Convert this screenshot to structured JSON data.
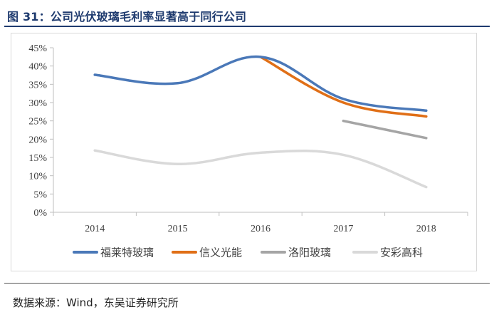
{
  "figure": {
    "title": "图 31：公司光伏玻璃毛利率显著高于同行公司",
    "source": "数据来源：Wind，东吴证券研究所"
  },
  "colors": {
    "title": "#1f3b6f",
    "series": [
      "#4a78b8",
      "#e06f17",
      "#a5a5a5",
      "#d9d9d9"
    ]
  },
  "chart_data": {
    "type": "line",
    "title": "",
    "xlabel": "",
    "ylabel": "",
    "x": [
      "2014",
      "2015",
      "2016",
      "2017",
      "2018"
    ],
    "ylim": [
      0,
      45
    ],
    "yticks": [
      "0%",
      "5%",
      "10%",
      "15%",
      "20%",
      "25%",
      "30%",
      "35%",
      "40%",
      "45%"
    ],
    "ytick_values": [
      0,
      5,
      10,
      15,
      20,
      25,
      30,
      35,
      40,
      45
    ],
    "grid": false,
    "legend_position": "bottom",
    "series": [
      {
        "name": "福莱特玻璃",
        "values": [
          37.6,
          35.3,
          42.5,
          31.0,
          27.8
        ]
      },
      {
        "name": "信义光能",
        "values": [
          null,
          null,
          42.5,
          30.0,
          26.2
        ]
      },
      {
        "name": "洛阳玻璃",
        "values": [
          null,
          null,
          null,
          25.0,
          20.3
        ]
      },
      {
        "name": "安彩高科",
        "values": [
          16.9,
          13.2,
          16.3,
          15.7,
          6.9
        ]
      }
    ]
  }
}
